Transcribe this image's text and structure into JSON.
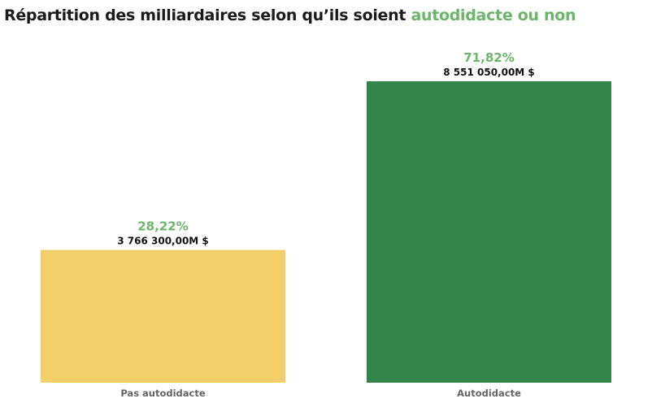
{
  "title": {
    "prefix": "Répartition des milliardaires selon qu’ils soient ",
    "highlight": "autodidacte ou non",
    "highlight_color": "#6db56d"
  },
  "chart_data": {
    "type": "bar",
    "categories": [
      "Pas autodidacte",
      "Autodidacte"
    ],
    "values": [
      3766300,
      8551050
    ],
    "value_labels": [
      "3 766 300,00M $",
      "8 551 050,00M $"
    ],
    "percent_labels": [
      "28,22%",
      "71,82%"
    ],
    "colors": [
      "#f2cf6a",
      "#33854a"
    ],
    "percent_label_color": "#6db56d",
    "title": "Répartition des milliardaires selon qu’ils soient autodidacte ou non",
    "xlabel": "",
    "ylabel": "",
    "ylim": [
      0,
      8551050
    ],
    "grid": false,
    "legend": "none"
  }
}
